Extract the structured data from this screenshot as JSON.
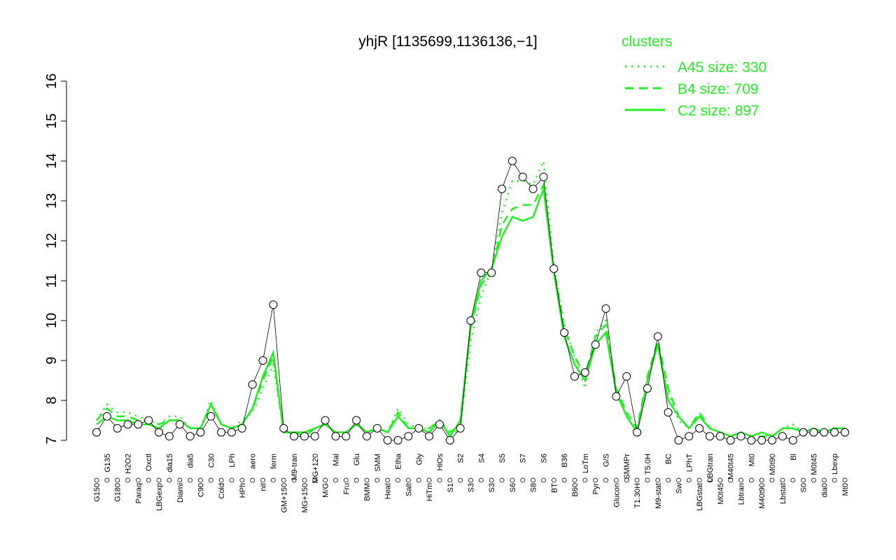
{
  "chart_data": {
    "type": "line",
    "title": "yhjR [1135699,1136136,−1]",
    "legend_title": "clusters",
    "legend_color": "#22ee22",
    "point_color": "#ffffff",
    "point_line_color": "#000000",
    "ylim": [
      7,
      16
    ],
    "yticks": [
      7,
      8,
      9,
      10,
      11,
      12,
      13,
      14,
      15,
      16
    ],
    "categories": [
      "G150",
      "G135",
      "G180",
      "H2O2",
      "Paraq",
      "Oxctl",
      "LBGexp",
      "dia15",
      "Diami",
      "dia5",
      "C90",
      "C30",
      "Cold",
      "LPh",
      "HPh",
      "aero",
      "nit",
      "ferm",
      "GM+150",
      "M9-tran",
      "MG+150",
      "MG+120",
      "M/G",
      "Mal",
      "Fru",
      "Glu",
      "BMM",
      "SMM",
      "Heat",
      "Etha",
      "Salt",
      "Gly",
      "HiTm",
      "HiOs",
      "S1",
      "S2",
      "S3",
      "S4",
      "S3",
      "S5",
      "S6",
      "S7",
      "S8",
      "S6",
      "BT",
      "B36",
      "B60",
      "LoTm",
      "Pyr",
      "G/S",
      "Glucon",
      "SMMPr",
      "T1.30H",
      "T5.0H",
      "M9-stat",
      "BC",
      "Sw",
      "LPhT",
      "LBGstat",
      "LBGtran",
      "M0t45",
      "M40t45",
      "Lbtran",
      "Mt0",
      "M40t90",
      "M0t90",
      "Lbstat",
      "Bl",
      "S0",
      "M0t45",
      "dia0",
      "Lbexp",
      "Mt0"
    ],
    "values": [
      7.2,
      7.6,
      7.3,
      7.4,
      7.4,
      7.5,
      7.2,
      7.1,
      7.4,
      7.1,
      7.2,
      7.6,
      7.2,
      7.2,
      7.3,
      8.4,
      9.0,
      10.4,
      7.3,
      7.1,
      7.1,
      7.1,
      7.5,
      7.1,
      7.1,
      7.5,
      7.1,
      7.3,
      7.0,
      7.0,
      7.1,
      7.3,
      7.1,
      7.4,
      7.0,
      7.3,
      10.0,
      11.2,
      11.2,
      13.3,
      14.0,
      13.6,
      13.3,
      13.6,
      11.3,
      9.7,
      8.6,
      8.7,
      9.4,
      10.3,
      8.1,
      8.6,
      7.2,
      8.3,
      9.6,
      7.7,
      7.0,
      7.1,
      7.3,
      7.1,
      7.1,
      7.0,
      7.1,
      7.0,
      7.0,
      7.0,
      7.1,
      7.0,
      7.2,
      7.2,
      7.2,
      7.2,
      7.2
    ],
    "series": [
      {
        "name": "A45 size: 330",
        "style": "dotted",
        "color": "#22ee22",
        "values": [
          7.5,
          7.9,
          7.7,
          7.7,
          7.6,
          7.5,
          7.4,
          7.6,
          7.6,
          7.3,
          7.3,
          8.0,
          7.4,
          7.3,
          7.5,
          7.7,
          8.3,
          8.9,
          7.2,
          7.2,
          7.2,
          7.3,
          7.4,
          7.2,
          7.2,
          7.4,
          7.2,
          7.3,
          7.2,
          7.8,
          7.4,
          7.3,
          7.3,
          7.5,
          7.1,
          7.3,
          9.5,
          10.6,
          11.3,
          12.7,
          13.5,
          13.5,
          13.4,
          14.0,
          11.4,
          9.9,
          9.1,
          8.3,
          9.7,
          10.0,
          8.2,
          7.6,
          7.2,
          8.5,
          9.4,
          8.2,
          7.5,
          7.3,
          7.6,
          7.3,
          7.2,
          7.1,
          7.2,
          7.1,
          7.1,
          7.1,
          7.3,
          7.4,
          7.2,
          7.2,
          7.2,
          7.3,
          7.3
        ]
      },
      {
        "name": "B4 size: 709",
        "style": "dashed",
        "color": "#22ee22",
        "values": [
          7.5,
          7.8,
          7.6,
          7.6,
          7.5,
          7.5,
          7.4,
          7.5,
          7.5,
          7.3,
          7.3,
          7.9,
          7.4,
          7.3,
          7.4,
          7.8,
          8.5,
          9.1,
          7.2,
          7.2,
          7.1,
          7.3,
          7.4,
          7.2,
          7.2,
          7.4,
          7.2,
          7.3,
          7.2,
          7.7,
          7.3,
          7.3,
          7.3,
          7.5,
          7.2,
          7.4,
          9.8,
          10.9,
          11.2,
          12.4,
          12.8,
          12.9,
          12.9,
          13.4,
          11.3,
          9.8,
          9.1,
          8.6,
          9.6,
          9.9,
          8.3,
          7.7,
          7.3,
          8.6,
          9.5,
          8.3,
          7.6,
          7.3,
          7.7,
          7.3,
          7.2,
          7.1,
          7.2,
          7.1,
          7.1,
          7.1,
          7.3,
          7.3,
          7.2,
          7.2,
          7.2,
          7.3,
          7.3
        ]
      },
      {
        "name": "C2 size: 897",
        "style": "solid",
        "color": "#22ee22",
        "values": [
          7.4,
          7.6,
          7.5,
          7.5,
          7.4,
          7.4,
          7.3,
          7.5,
          7.5,
          7.3,
          7.3,
          7.9,
          7.4,
          7.3,
          7.4,
          7.8,
          8.6,
          9.2,
          7.2,
          7.2,
          7.2,
          7.3,
          7.4,
          7.2,
          7.2,
          7.4,
          7.2,
          7.3,
          7.2,
          7.6,
          7.3,
          7.3,
          7.2,
          7.5,
          7.1,
          7.5,
          9.9,
          11.0,
          11.3,
          12.1,
          12.6,
          12.5,
          12.6,
          13.3,
          11.2,
          9.6,
          8.9,
          8.5,
          9.4,
          9.7,
          8.2,
          7.6,
          7.2,
          8.5,
          9.4,
          8.0,
          7.6,
          7.3,
          7.6,
          7.3,
          7.2,
          7.1,
          7.2,
          7.1,
          7.2,
          7.1,
          7.3,
          7.3,
          7.2,
          7.3,
          7.2,
          7.3,
          7.3
        ]
      }
    ]
  }
}
